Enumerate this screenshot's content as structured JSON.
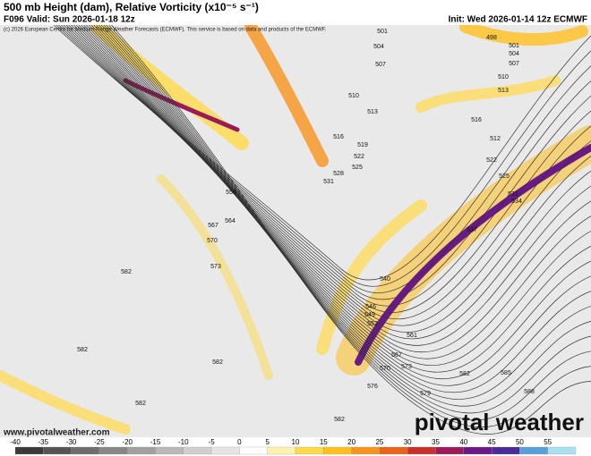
{
  "header": {
    "title": "500 mb Height (dam), Relative Vorticity (x10⁻⁵ s⁻¹)",
    "valid": "F096 Valid: Sun 2026-01-18 12z",
    "init": "Init: Wed 2026-01-14 12z ECMWF"
  },
  "map": {
    "copyright": "(c) 2026 European Centre for Medium-Range Weather Forecasts (ECMWF). This service is based on data and products of the ECMWF.",
    "contour_labels": [
      "501",
      "504",
      "507",
      "498",
      "501",
      "504",
      "507",
      "510",
      "513",
      "510",
      "513",
      "516",
      "516",
      "519",
      "512",
      "522",
      "522",
      "525",
      "528",
      "531",
      "525",
      "531",
      "534",
      "558",
      "564",
      "567",
      "570",
      "537",
      "573",
      "582",
      "540",
      "546",
      "549",
      "552",
      "561",
      "567",
      "570",
      "573",
      "576",
      "579",
      "582",
      "582",
      "582",
      "585",
      "588",
      "582",
      "582"
    ],
    "website": "www.pivotalweather.com",
    "logo": "pivotal weather"
  },
  "colorbar": {
    "ticks": [
      -40,
      -35,
      -30,
      -25,
      -20,
      -15,
      -10,
      -5,
      0,
      5,
      10,
      15,
      20,
      25,
      30,
      35,
      40,
      45,
      50,
      55
    ],
    "colors": [
      "#3a3a3a",
      "#555555",
      "#6e6e6e",
      "#878787",
      "#a0a0a0",
      "#b8b8b8",
      "#cfcfcf",
      "#e4e4e4",
      "#ffffff",
      "#fff2b0",
      "#ffd94a",
      "#ffbf1f",
      "#f7941d",
      "#e8641a",
      "#c9302c",
      "#9b1b5a",
      "#6a1a86",
      "#4b2a9a",
      "#5aa0d8",
      "#a8e0f0"
    ]
  }
}
